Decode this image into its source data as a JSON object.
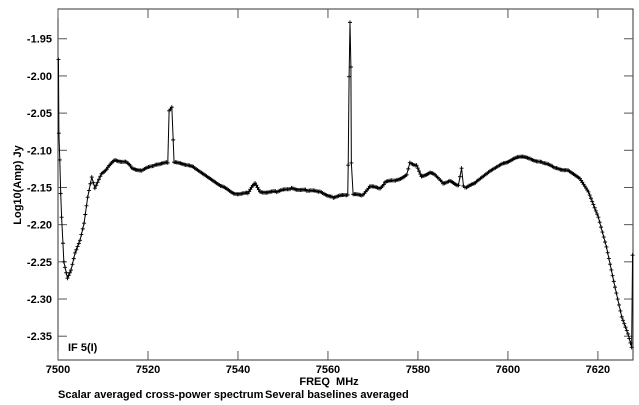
{
  "chart_data": {
    "type": "line",
    "title": "",
    "xlabel": "FREQ  MHz",
    "ylabel": "Log10(Amp) Jy",
    "annotation": "IF 5(I)",
    "caption_left": "Scalar averaged cross-power spectrum",
    "caption_right": "Several baselines averaged",
    "xlim": [
      7500,
      7627.8
    ],
    "ylim": [
      -2.382,
      -1.91
    ],
    "x_ticks": [
      7500,
      7520,
      7540,
      7560,
      7580,
      7600,
      7620
    ],
    "x_tick_labels": [
      "7500",
      "7520",
      "7540",
      "7560",
      "7580",
      "7600",
      "7620"
    ],
    "y_ticks": [
      -1.95,
      -2.0,
      -2.05,
      -2.1,
      -2.15,
      -2.2,
      -2.25,
      -2.3,
      -2.35
    ],
    "y_tick_labels": [
      "-1.95",
      "-2.00",
      "-2.05",
      "-2.10",
      "-2.15",
      "-2.20",
      "-2.25",
      "-2.30",
      "-2.35"
    ],
    "grid": false,
    "series": [
      {
        "name": "IF 5(I)",
        "color": "#000000",
        "x": [
          7500.1,
          7500.2,
          7500.4,
          7500.6,
          7500.8,
          7501.1,
          7501.3,
          7502.1,
          7502.9,
          7503.8,
          7504.9,
          7505.8,
          7506.6,
          7507.5,
          7508.2,
          7509.7,
          7511.1,
          7512.7,
          7515.3,
          7516.4,
          7518.6,
          7521.6,
          7523.0,
          7524.4,
          7524.7,
          7525.3,
          7525.6,
          7525.8,
          7527.5,
          7530.4,
          7533.3,
          7536.4,
          7539.3,
          7542.2,
          7543.3,
          7543.8,
          7544.9,
          7548.6,
          7551.9,
          7555.3,
          7558.2,
          7561.2,
          7564.4,
          7564.5,
          7564.7,
          7564.9,
          7565.1,
          7565.2,
          7565.6,
          7567.8,
          7569.3,
          7571.6,
          7572.7,
          7575.3,
          7577.5,
          7578.2,
          7579.7,
          7580.8,
          7582.7,
          7583.8,
          7585.6,
          7587.1,
          7589.0,
          7589.7,
          7590.1,
          7590.8,
          7593.0,
          7596.0,
          7599.0,
          7602.7,
          7604.9,
          7607.8,
          7610.8,
          7613.4,
          7616.0,
          7617.9,
          7620.1,
          7621.9,
          7623.8,
          7625.3,
          7626.7,
          7627.5,
          7627.7
        ],
        "y": [
          -1.978,
          -2.077,
          -2.113,
          -2.158,
          -2.19,
          -2.225,
          -2.25,
          -2.272,
          -2.261,
          -2.238,
          -2.221,
          -2.198,
          -2.163,
          -2.136,
          -2.151,
          -2.131,
          -2.123,
          -2.113,
          -2.116,
          -2.124,
          -2.127,
          -2.12,
          -2.117,
          -2.117,
          -2.046,
          -2.042,
          -2.086,
          -2.117,
          -2.117,
          -2.124,
          -2.136,
          -2.149,
          -2.158,
          -2.158,
          -2.147,
          -2.144,
          -2.156,
          -2.156,
          -2.151,
          -2.154,
          -2.156,
          -2.163,
          -2.16,
          -2.12,
          -2.001,
          -1.928,
          -1.988,
          -2.117,
          -2.16,
          -2.16,
          -2.149,
          -2.151,
          -2.143,
          -2.14,
          -2.133,
          -2.117,
          -2.12,
          -2.136,
          -2.129,
          -2.133,
          -2.144,
          -2.142,
          -2.147,
          -2.124,
          -2.147,
          -2.151,
          -2.142,
          -2.128,
          -2.117,
          -2.109,
          -2.111,
          -2.117,
          -2.124,
          -2.127,
          -2.138,
          -2.156,
          -2.19,
          -2.23,
          -2.284,
          -2.324,
          -2.347,
          -2.365,
          -2.241
        ]
      }
    ]
  }
}
